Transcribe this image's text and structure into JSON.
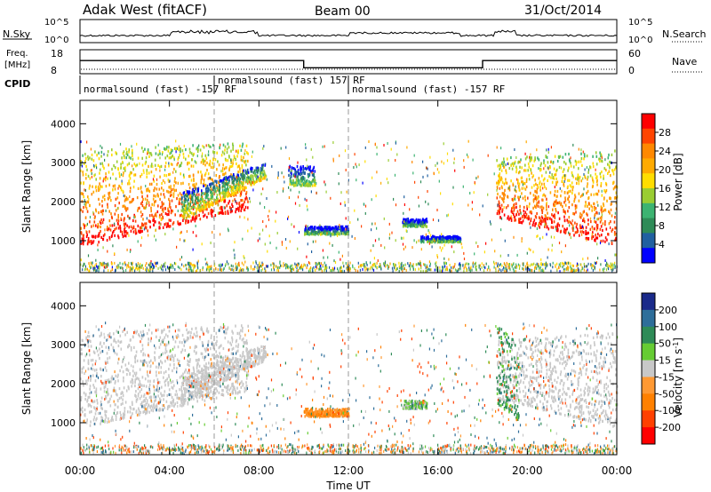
{
  "header": {
    "station": "Adak West (fitACF)",
    "beam": "Beam 00",
    "date": "31/Oct/2014"
  },
  "top_panels": {
    "nsky_label": "N.Sky",
    "nsearch_label": "N.Search",
    "noise_ticks": [
      "10^5",
      "10^0"
    ],
    "freq_label_1": "Freq.",
    "freq_label_2": "[MHz]",
    "freq_ticks": [
      "18",
      "8"
    ],
    "nave_label": "Nave",
    "nave_ticks": [
      "60",
      "0"
    ],
    "cpid_label": "CPID",
    "cpid_segments": [
      {
        "label": "normalsound (fast) -157 RF",
        "start_hour": 0,
        "end_hour": 6
      },
      {
        "label": "normalsound (fast) 157 RF",
        "start_hour": 6,
        "end_hour": 12
      },
      {
        "label": "normalsound (fast) -157 RF",
        "start_hour": 12,
        "end_hour": 24
      }
    ],
    "freq_trace": [
      {
        "from": 0,
        "to": 10,
        "level": 13.5
      },
      {
        "from": 10,
        "to": 18,
        "level": 10.5
      },
      {
        "from": 18,
        "to": 24,
        "level": 13.5
      }
    ]
  },
  "axes": {
    "xlabel": "Time UT",
    "x_ticks": [
      "00:00",
      "04:00",
      "08:00",
      "12:00",
      "16:00",
      "20:00",
      "00:00"
    ],
    "ylabel_power": "Slant Range [km]",
    "ylabel_velocity": "Slant Range [km]",
    "y_ticks": [
      "1000",
      "2000",
      "3000",
      "4000"
    ]
  },
  "colorbars": {
    "power": {
      "label": "Power [dB]",
      "ticks": [
        "28",
        "24",
        "20",
        "16",
        "12",
        "8",
        "4"
      ],
      "colors": [
        "#ff0000",
        "#ff4400",
        "#ff8800",
        "#ffaa00",
        "#ffdd00",
        "#9acd32",
        "#3cb371",
        "#2e8b57",
        "#2060a0",
        "#0000ff"
      ]
    },
    "velocity": {
      "label": "Velocity [m s^-1]",
      "ticks": [
        "200",
        "100",
        "50",
        "15",
        "-15",
        "-50",
        "-100",
        "-200"
      ],
      "colors": [
        "#1a2a8a",
        "#2e6e9a",
        "#2e8b57",
        "#66cc33",
        "#c8c8c8",
        "#ff9933",
        "#ff8000",
        "#ff4000",
        "#ff0000"
      ]
    }
  },
  "chart_data": [
    {
      "type": "heatmap",
      "title": "Power",
      "x_unit": "hours UT",
      "xlim": [
        0,
        24
      ],
      "y_unit": "km",
      "ylim": [
        180,
        4600
      ],
      "scatter_regions": [
        {
          "name": "evening-main",
          "t0": 0,
          "t1": 7.5,
          "r_lo0": 850,
          "r_lo1": 1800,
          "r_hi0": 3300,
          "r_hi1": 3500,
          "value": 22
        },
        {
          "name": "dusk-arc",
          "t0": 4.5,
          "t1": 8.3,
          "r_lo0": 1500,
          "r_lo1": 2600,
          "r_hi0": 2200,
          "r_hi1": 3000,
          "value": 12
        },
        {
          "name": "midnight-patch-1",
          "t0": 9.3,
          "t1": 10.5,
          "r_lo0": 2400,
          "r_lo1": 2400,
          "r_hi0": 2900,
          "r_hi1": 2900,
          "value": 8
        },
        {
          "name": "midnight-patch-2",
          "t0": 10.0,
          "t1": 12.0,
          "r_lo0": 1150,
          "r_lo1": 1150,
          "r_hi0": 1350,
          "r_hi1": 1350,
          "value": 6
        },
        {
          "name": "midnight-patch-3",
          "t0": 14.4,
          "t1": 15.5,
          "r_lo0": 1350,
          "r_lo1": 1350,
          "r_hi0": 1550,
          "r_hi1": 1550,
          "value": 6
        },
        {
          "name": "midnight-patch-4",
          "t0": 15.2,
          "t1": 17.0,
          "r_lo0": 950,
          "r_lo1": 950,
          "r_hi0": 1100,
          "r_hi1": 1100,
          "value": 6
        },
        {
          "name": "morning-main",
          "t0": 18.6,
          "t1": 24,
          "r_lo0": 1600,
          "r_lo1": 850,
          "r_hi0": 3100,
          "r_hi1": 3300,
          "value": 22
        }
      ]
    },
    {
      "type": "heatmap",
      "title": "Velocity",
      "x_unit": "hours UT",
      "xlim": [
        0,
        24
      ],
      "y_unit": "km",
      "ylim": [
        180,
        4600
      ],
      "scatter_regions": [
        {
          "name": "evening-main",
          "t0": 0,
          "t1": 7.5,
          "r_lo0": 850,
          "r_lo1": 1800,
          "r_hi0": 3300,
          "r_hi1": 3500,
          "value": 0
        },
        {
          "name": "dusk-arc",
          "t0": 4.5,
          "t1": 8.3,
          "r_lo0": 1500,
          "r_lo1": 2600,
          "r_hi0": 2200,
          "r_hi1": 3000,
          "value": 0
        },
        {
          "name": "midnight-patch-2",
          "t0": 10.0,
          "t1": 12.0,
          "r_lo0": 1150,
          "r_lo1": 1150,
          "r_hi0": 1350,
          "r_hi1": 1350,
          "value": -40
        },
        {
          "name": "midnight-patch-3",
          "t0": 14.4,
          "t1": 15.5,
          "r_lo0": 1350,
          "r_lo1": 1350,
          "r_hi0": 1550,
          "r_hi1": 1550,
          "value": 20
        },
        {
          "name": "morning-main",
          "t0": 18.6,
          "t1": 24,
          "r_lo0": 1600,
          "r_lo1": 850,
          "r_hi0": 3100,
          "r_hi1": 3300,
          "value": 0
        },
        {
          "name": "morning-green-edge",
          "t0": 18.6,
          "t1": 19.6,
          "r_lo0": 1500,
          "r_lo1": 1000,
          "r_hi0": 3500,
          "r_hi1": 3000,
          "value": 40
        }
      ]
    }
  ]
}
